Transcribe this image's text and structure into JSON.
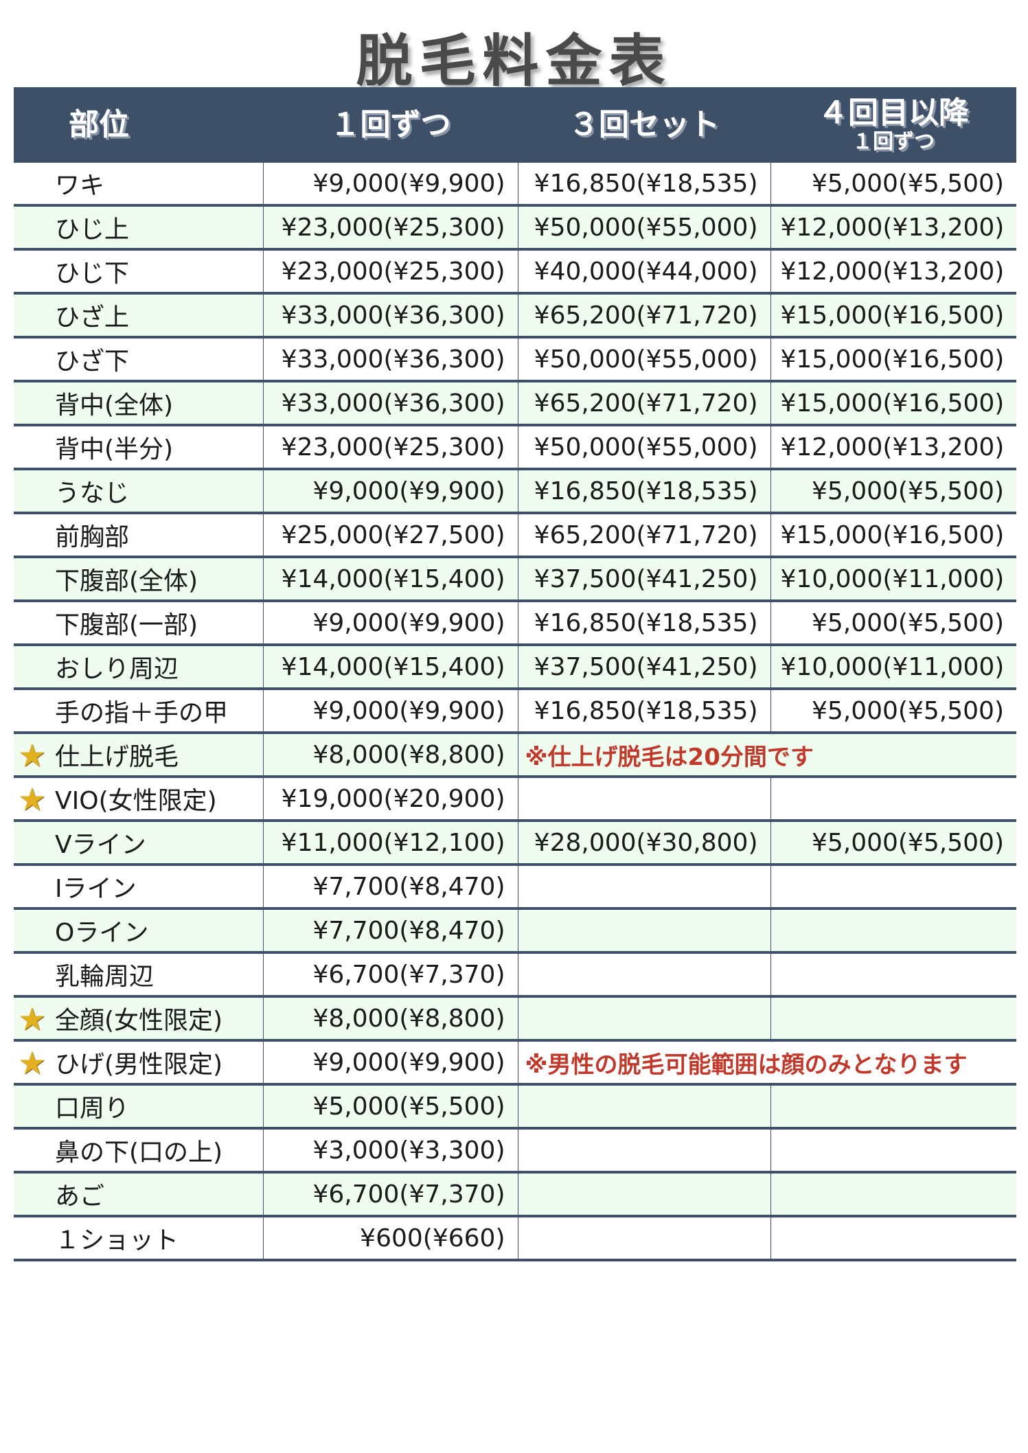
{
  "title": "脱毛料金表",
  "headers": {
    "part": "部位",
    "single": "１回ずつ",
    "set3": "３回セット",
    "after4_main": "４回目以降",
    "after4_sub": "１回ずつ"
  },
  "colors": {
    "header_bg": "#3e5068",
    "alt_row": "#effcef",
    "note": "#c0392b",
    "star": "#e0b020"
  },
  "rows": [
    {
      "part": "ワキ",
      "single": "¥9,000(¥9,900)",
      "set3": "¥16,850(¥18,535)",
      "after4": "¥5,000(¥5,500)"
    },
    {
      "part": "ひじ上",
      "single": "¥23,000(¥25,300)",
      "set3": "¥50,000(¥55,000)",
      "after4": "¥12,000(¥13,200)"
    },
    {
      "part": "ひじ下",
      "single": "¥23,000(¥25,300)",
      "set3": "¥40,000(¥44,000)",
      "after4": "¥12,000(¥13,200)"
    },
    {
      "part": "ひざ上",
      "single": "¥33,000(¥36,300)",
      "set3": "¥65,200(¥71,720)",
      "after4": "¥15,000(¥16,500)"
    },
    {
      "part": "ひざ下",
      "single": "¥33,000(¥36,300)",
      "set3": "¥50,000(¥55,000)",
      "after4": "¥15,000(¥16,500)"
    },
    {
      "part": "背中(全体)",
      "single": "¥33,000(¥36,300)",
      "set3": "¥65,200(¥71,720)",
      "after4": "¥15,000(¥16,500)"
    },
    {
      "part": "背中(半分)",
      "single": "¥23,000(¥25,300)",
      "set3": "¥50,000(¥55,000)",
      "after4": "¥12,000(¥13,200)"
    },
    {
      "part": "うなじ",
      "single": "¥9,000(¥9,900)",
      "set3": "¥16,850(¥18,535)",
      "after4": "¥5,000(¥5,500)"
    },
    {
      "part": "前胸部",
      "single": "¥25,000(¥27,500)",
      "set3": "¥65,200(¥71,720)",
      "after4": "¥15,000(¥16,500)"
    },
    {
      "part": "下腹部(全体)",
      "single": "¥14,000(¥15,400)",
      "set3": "¥37,500(¥41,250)",
      "after4": "¥10,000(¥11,000)"
    },
    {
      "part": "下腹部(一部)",
      "single": "¥9,000(¥9,900)",
      "set3": "¥16,850(¥18,535)",
      "after4": "¥5,000(¥5,500)"
    },
    {
      "part": "おしり周辺",
      "single": "¥14,000(¥15,400)",
      "set3": "¥37,500(¥41,250)",
      "after4": "¥10,000(¥11,000)"
    },
    {
      "part": "手の指＋手の甲",
      "single": "¥9,000(¥9,900)",
      "set3": "¥16,850(¥18,535)",
      "after4": "¥5,000(¥5,500)"
    },
    {
      "part": "仕上げ脱毛",
      "single": "¥8,000(¥8,800)",
      "note": "※仕上げ脱毛は20分間です",
      "star": true
    },
    {
      "part": "VIO(女性限定)",
      "single": "¥19,000(¥20,900)",
      "set3": "",
      "after4": "",
      "star": true
    },
    {
      "part": "Vライン",
      "single": "¥11,000(¥12,100)",
      "set3": "¥28,000(¥30,800)",
      "after4": "¥5,000(¥5,500)"
    },
    {
      "part": "Iライン",
      "single": "¥7,700(¥8,470)",
      "set3": "",
      "after4": ""
    },
    {
      "part": "Oライン",
      "single": "¥7,700(¥8,470)",
      "set3": "",
      "after4": ""
    },
    {
      "part": "乳輪周辺",
      "single": "¥6,700(¥7,370)",
      "set3": "",
      "after4": ""
    },
    {
      "part": "全顔(女性限定)",
      "single": "¥8,000(¥8,800)",
      "set3": "",
      "after4": "",
      "star": true
    },
    {
      "part": "ひげ(男性限定)",
      "single": "¥9,000(¥9,900)",
      "note": "※男性の脱毛可能範囲は顔のみとなります",
      "star": true
    },
    {
      "part": "口周り",
      "single": "¥5,000(¥5,500)",
      "set3": "",
      "after4": ""
    },
    {
      "part": "鼻の下(口の上)",
      "single": "¥3,000(¥3,300)",
      "set3": "",
      "after4": ""
    },
    {
      "part": "あご",
      "single": "¥6,700(¥7,370)",
      "set3": "",
      "after4": ""
    },
    {
      "part": "１ショット",
      "single": "¥600(¥660)",
      "set3": "",
      "after4": ""
    }
  ]
}
